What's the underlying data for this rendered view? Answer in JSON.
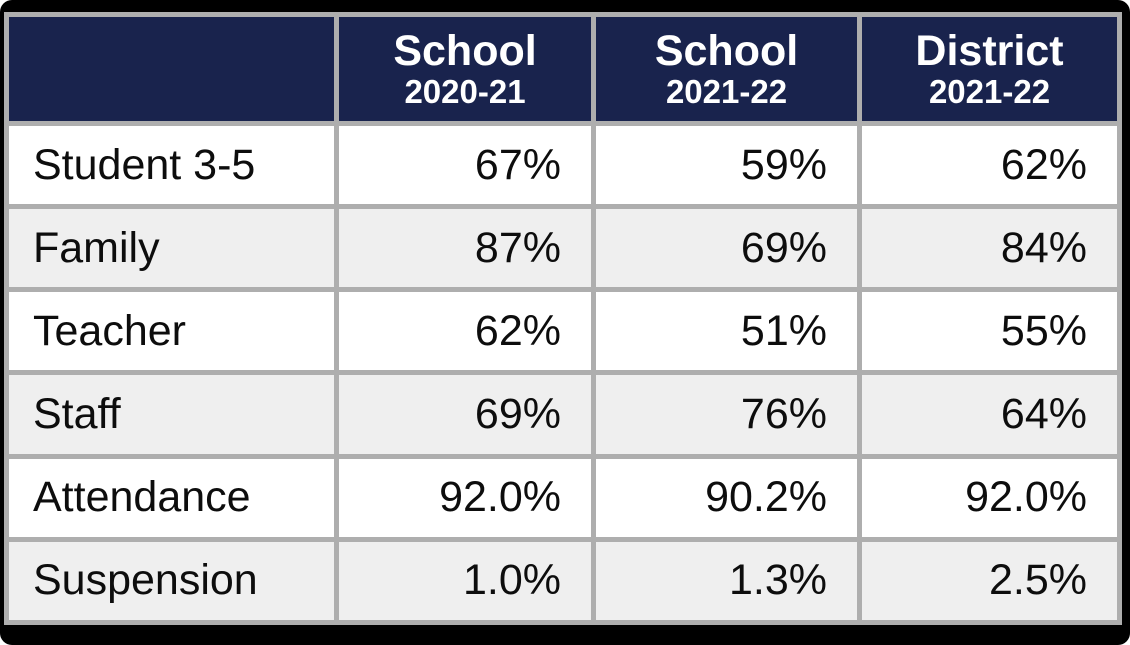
{
  "colors": {
    "header_bg": "#19234d",
    "header_text": "#ffffff",
    "grid_border": "#aeaeae",
    "row_alt_bg": "#efefef",
    "row_bg": "#ffffff",
    "outer_frame": "#000000",
    "body_text": "#0d0d0d"
  },
  "table": {
    "columns": [
      {
        "title": "",
        "subtitle": ""
      },
      {
        "title": "School",
        "subtitle": "2020-21"
      },
      {
        "title": "School",
        "subtitle": "2021-22"
      },
      {
        "title": "District",
        "subtitle": "2021-22"
      }
    ],
    "rows": [
      {
        "label": "Student 3-5",
        "values": [
          "67%",
          "59%",
          "62%"
        ]
      },
      {
        "label": "Family",
        "values": [
          "87%",
          "69%",
          "84%"
        ]
      },
      {
        "label": "Teacher",
        "values": [
          "62%",
          "51%",
          "55%"
        ]
      },
      {
        "label": "Staff",
        "values": [
          "69%",
          "76%",
          "64%"
        ]
      },
      {
        "label": "Attendance",
        "values": [
          "92.0%",
          "90.2%",
          "92.0%"
        ]
      },
      {
        "label": "Suspension",
        "values": [
          "1.0%",
          "1.3%",
          "2.5%"
        ]
      }
    ]
  },
  "chart_data": {
    "type": "table",
    "title": "",
    "categories": [
      "Student 3-5",
      "Family",
      "Teacher",
      "Staff",
      "Attendance",
      "Suspension"
    ],
    "series": [
      {
        "name": "School 2020-21",
        "values": [
          67,
          87,
          62,
          69,
          92.0,
          1.0
        ]
      },
      {
        "name": "School 2021-22",
        "values": [
          59,
          69,
          51,
          76,
          90.2,
          1.3
        ]
      },
      {
        "name": "District 2021-22",
        "values": [
          62,
          84,
          55,
          64,
          92.0,
          2.5
        ]
      }
    ],
    "value_unit": "%"
  }
}
